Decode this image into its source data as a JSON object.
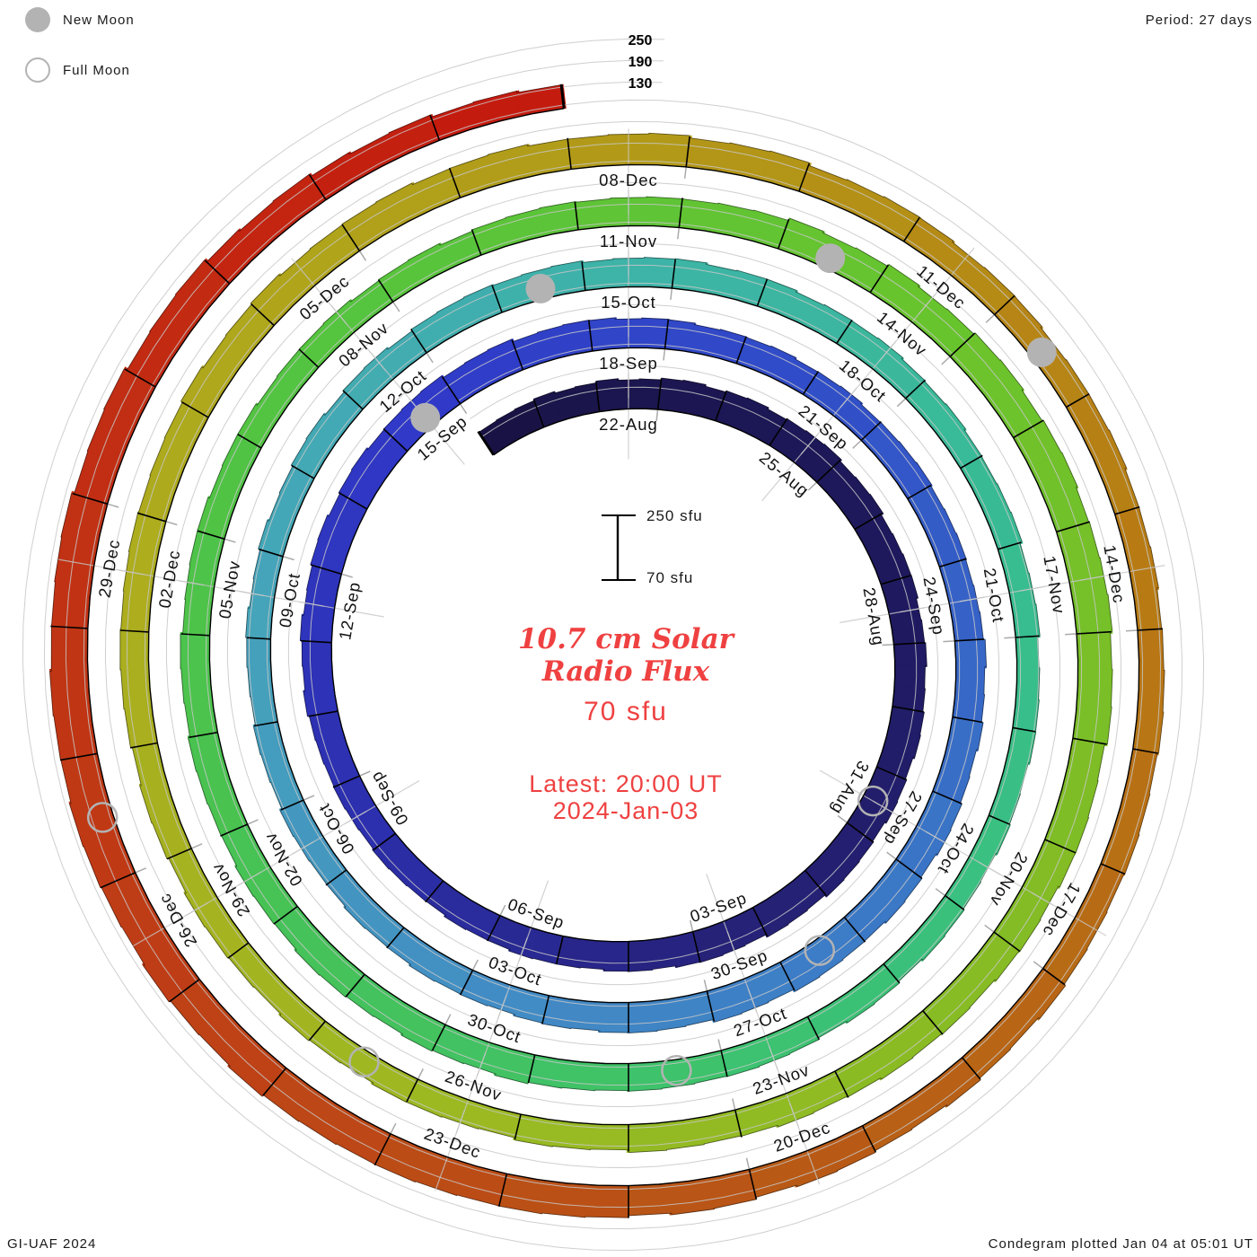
{
  "legend": {
    "new_moon": "New Moon",
    "full_moon": "Full Moon"
  },
  "header": {
    "period": "Period: 27 days"
  },
  "radial_axis_labels": [
    "250",
    "190",
    "130"
  ],
  "scale_bar": {
    "top": "250 sfu",
    "bottom": "70 sfu"
  },
  "center": {
    "title_line1": "10.7 cm Solar",
    "title_line2": "Radio Flux",
    "baseline_label": "70 sfu",
    "latest_line1": "Latest: 20:00 UT",
    "latest_line2": "2024-Jan-03"
  },
  "footer": {
    "left": "GI-UAF 2024",
    "right": "Condegram plotted Jan 04 at 05:01 UT"
  },
  "chart_data": {
    "type": "bar",
    "layout": "polar-spiral-condegram",
    "title": "10.7 cm Solar Radio Flux",
    "units": "sfu",
    "period_days": 27,
    "baseline_sfu": 70,
    "grid_levels_sfu": [
      130,
      190,
      250
    ],
    "angle_zero_date": "2023-08-22",
    "start_date": "2023-08-20",
    "end_date": "2024-01-03",
    "readings_per_day": 3,
    "segment_label_step_days": 3,
    "segment_labels": [
      "22-Aug",
      "25-Aug",
      "28-Aug",
      "31-Aug",
      "03-Sep",
      "06-Sep",
      "09-Sep",
      "12-Sep",
      "15-Sep",
      "18-Sep",
      "21-Sep",
      "24-Sep",
      "27-Sep",
      "30-Sep",
      "03-Oct",
      "06-Oct",
      "09-Oct",
      "12-Oct",
      "15-Oct",
      "18-Oct",
      "21-Oct",
      "24-Oct",
      "27-Oct",
      "30-Oct",
      "02-Nov",
      "05-Nov",
      "08-Nov",
      "11-Nov",
      "14-Nov",
      "17-Nov",
      "20-Nov",
      "23-Nov",
      "26-Nov",
      "29-Nov",
      "02-Dec",
      "05-Dec",
      "08-Dec",
      "11-Dec",
      "14-Dec",
      "17-Dec",
      "20-Dec",
      "23-Dec",
      "26-Dec",
      "29-Dec"
    ],
    "daily_flux_sfu": [
      148,
      151,
      154,
      157,
      159,
      160,
      159,
      157,
      156,
      157,
      159,
      161,
      162,
      160,
      157,
      154,
      151,
      149,
      147,
      146,
      147,
      150,
      153,
      156,
      159,
      161,
      161,
      159,
      156,
      153,
      150,
      147,
      146,
      145,
      146,
      149,
      152,
      155,
      158,
      160,
      159,
      157,
      154,
      151,
      147,
      144,
      141,
      139,
      137,
      136,
      137,
      140,
      143,
      146,
      149,
      151,
      151,
      150,
      148,
      145,
      141,
      138,
      136,
      134,
      133,
      134,
      136,
      139,
      142,
      145,
      148,
      150,
      151,
      152,
      152,
      151,
      150,
      148,
      146,
      144,
      143,
      144,
      146,
      149,
      153,
      158,
      162,
      165,
      167,
      167,
      166,
      163,
      160,
      156,
      152,
      148,
      145,
      142,
      140,
      139,
      140,
      141,
      144,
      147,
      150,
      153,
      156,
      158,
      158,
      157,
      155,
      153,
      150,
      147,
      144,
      142,
      140,
      140,
      141,
      143,
      146,
      149,
      152,
      156,
      160,
      164,
      168,
      171,
      174,
      175,
      174,
      172,
      169,
      165,
      155,
      146,
      138
    ],
    "new_moon_dates": [
      "2023-09-15",
      "2023-10-14",
      "2023-11-13",
      "2023-12-12"
    ],
    "full_moon_dates": [
      "2023-08-31",
      "2023-09-29",
      "2023-10-28",
      "2023-11-27",
      "2023-12-27"
    ],
    "colors": {
      "moon_gray": "#b3b3b3",
      "grid_gray": "#c7c7c7",
      "accent_red_text": "#ef4141",
      "colormap_stops": [
        {
          "date": "2023-08-20",
          "color": "#191345"
        },
        {
          "date": "2023-08-22",
          "color": "#1b164f"
        },
        {
          "date": "2023-08-28",
          "color": "#1f1a60"
        },
        {
          "date": "2023-09-03",
          "color": "#262278"
        },
        {
          "date": "2023-09-09",
          "color": "#2c2fae"
        },
        {
          "date": "2023-09-15",
          "color": "#3039c8"
        },
        {
          "date": "2023-09-21",
          "color": "#3150c8"
        },
        {
          "date": "2023-09-27",
          "color": "#3a74c6"
        },
        {
          "date": "2023-10-03",
          "color": "#428cc5"
        },
        {
          "date": "2023-10-09",
          "color": "#45a4ba"
        },
        {
          "date": "2023-10-15",
          "color": "#3eb3a8"
        },
        {
          "date": "2023-10-21",
          "color": "#37bd90"
        },
        {
          "date": "2023-10-27",
          "color": "#3cc270"
        },
        {
          "date": "2023-11-02",
          "color": "#47c254"
        },
        {
          "date": "2023-11-08",
          "color": "#55c43e"
        },
        {
          "date": "2023-11-14",
          "color": "#68c42d"
        },
        {
          "date": "2023-11-20",
          "color": "#83bc24"
        },
        {
          "date": "2023-11-26",
          "color": "#9cb922"
        },
        {
          "date": "2023-12-02",
          "color": "#adad1e"
        },
        {
          "date": "2023-12-08",
          "color": "#b29a18"
        },
        {
          "date": "2023-12-14",
          "color": "#b87b13"
        },
        {
          "date": "2023-12-20",
          "color": "#b85a16"
        },
        {
          "date": "2023-12-26",
          "color": "#bf3d16"
        },
        {
          "date": "2023-12-31",
          "color": "#c22a12"
        },
        {
          "date": "2024-01-03",
          "color": "#c41b0f"
        }
      ]
    }
  }
}
